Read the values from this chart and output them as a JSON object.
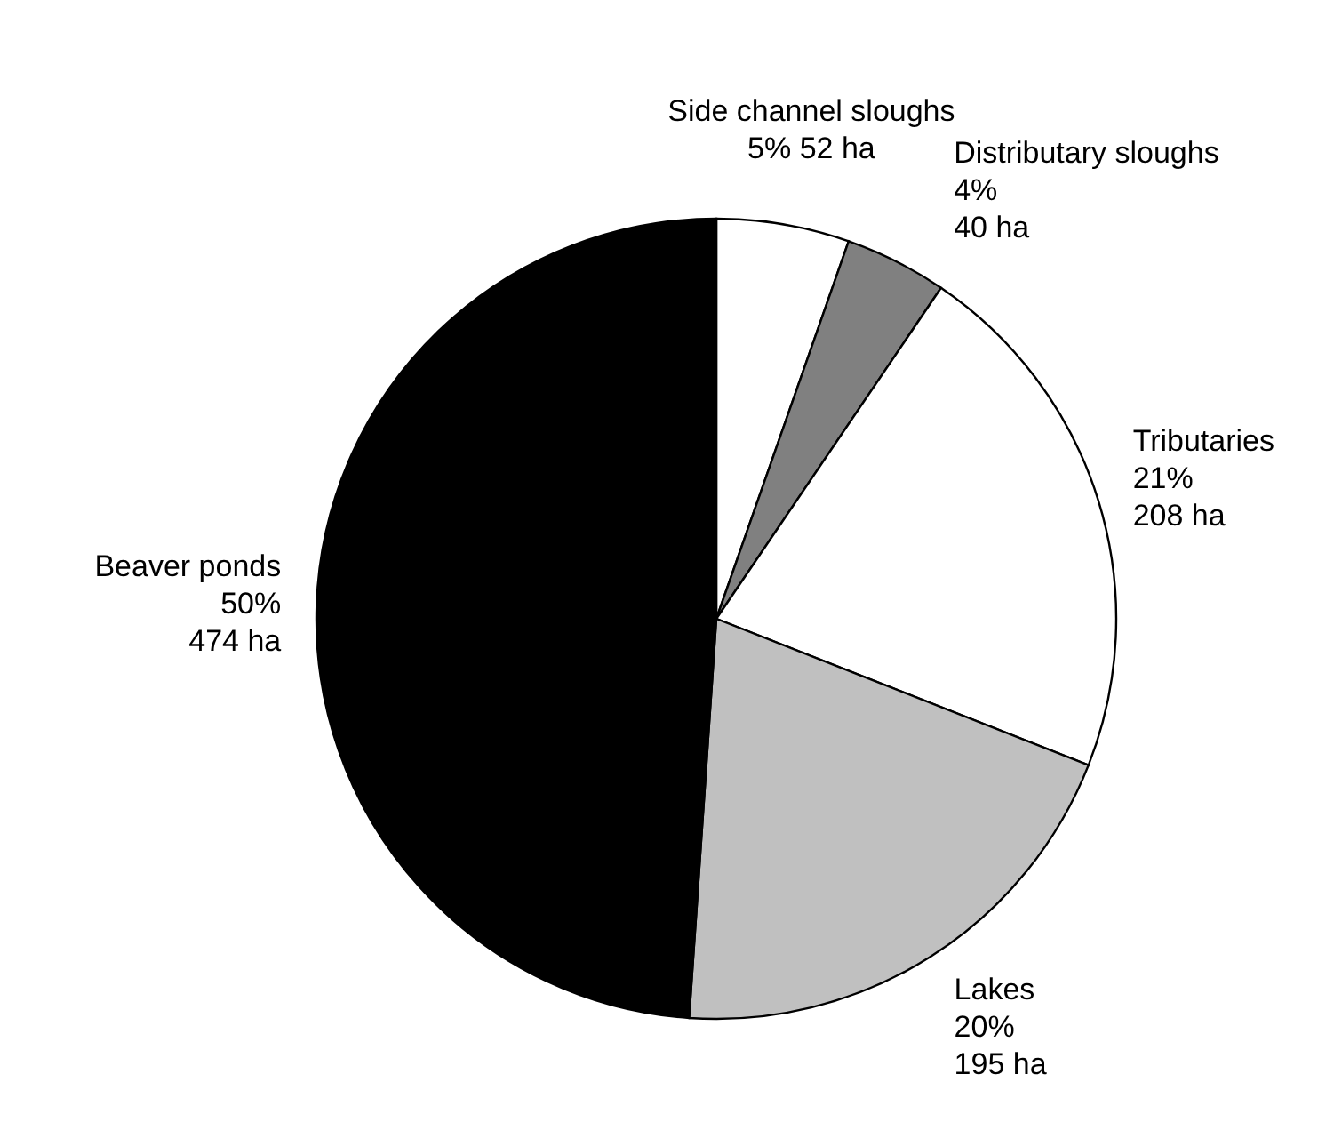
{
  "chart_data": {
    "type": "pie",
    "categories": [
      "Side channel sloughs",
      "Distributary sloughs",
      "Tributaries",
      "Lakes",
      "Beaver ponds"
    ],
    "values": [
      52,
      40,
      208,
      195,
      474
    ],
    "value_labels": [
      "5% 52 ha",
      "4%\n40 ha",
      "21%\n208 ha",
      "20%\n195 ha",
      "50%\n474  ha"
    ],
    "colors": [
      "#ffffff",
      "#808080",
      "#ffffff",
      "#c0c0c0",
      "#000000"
    ]
  }
}
